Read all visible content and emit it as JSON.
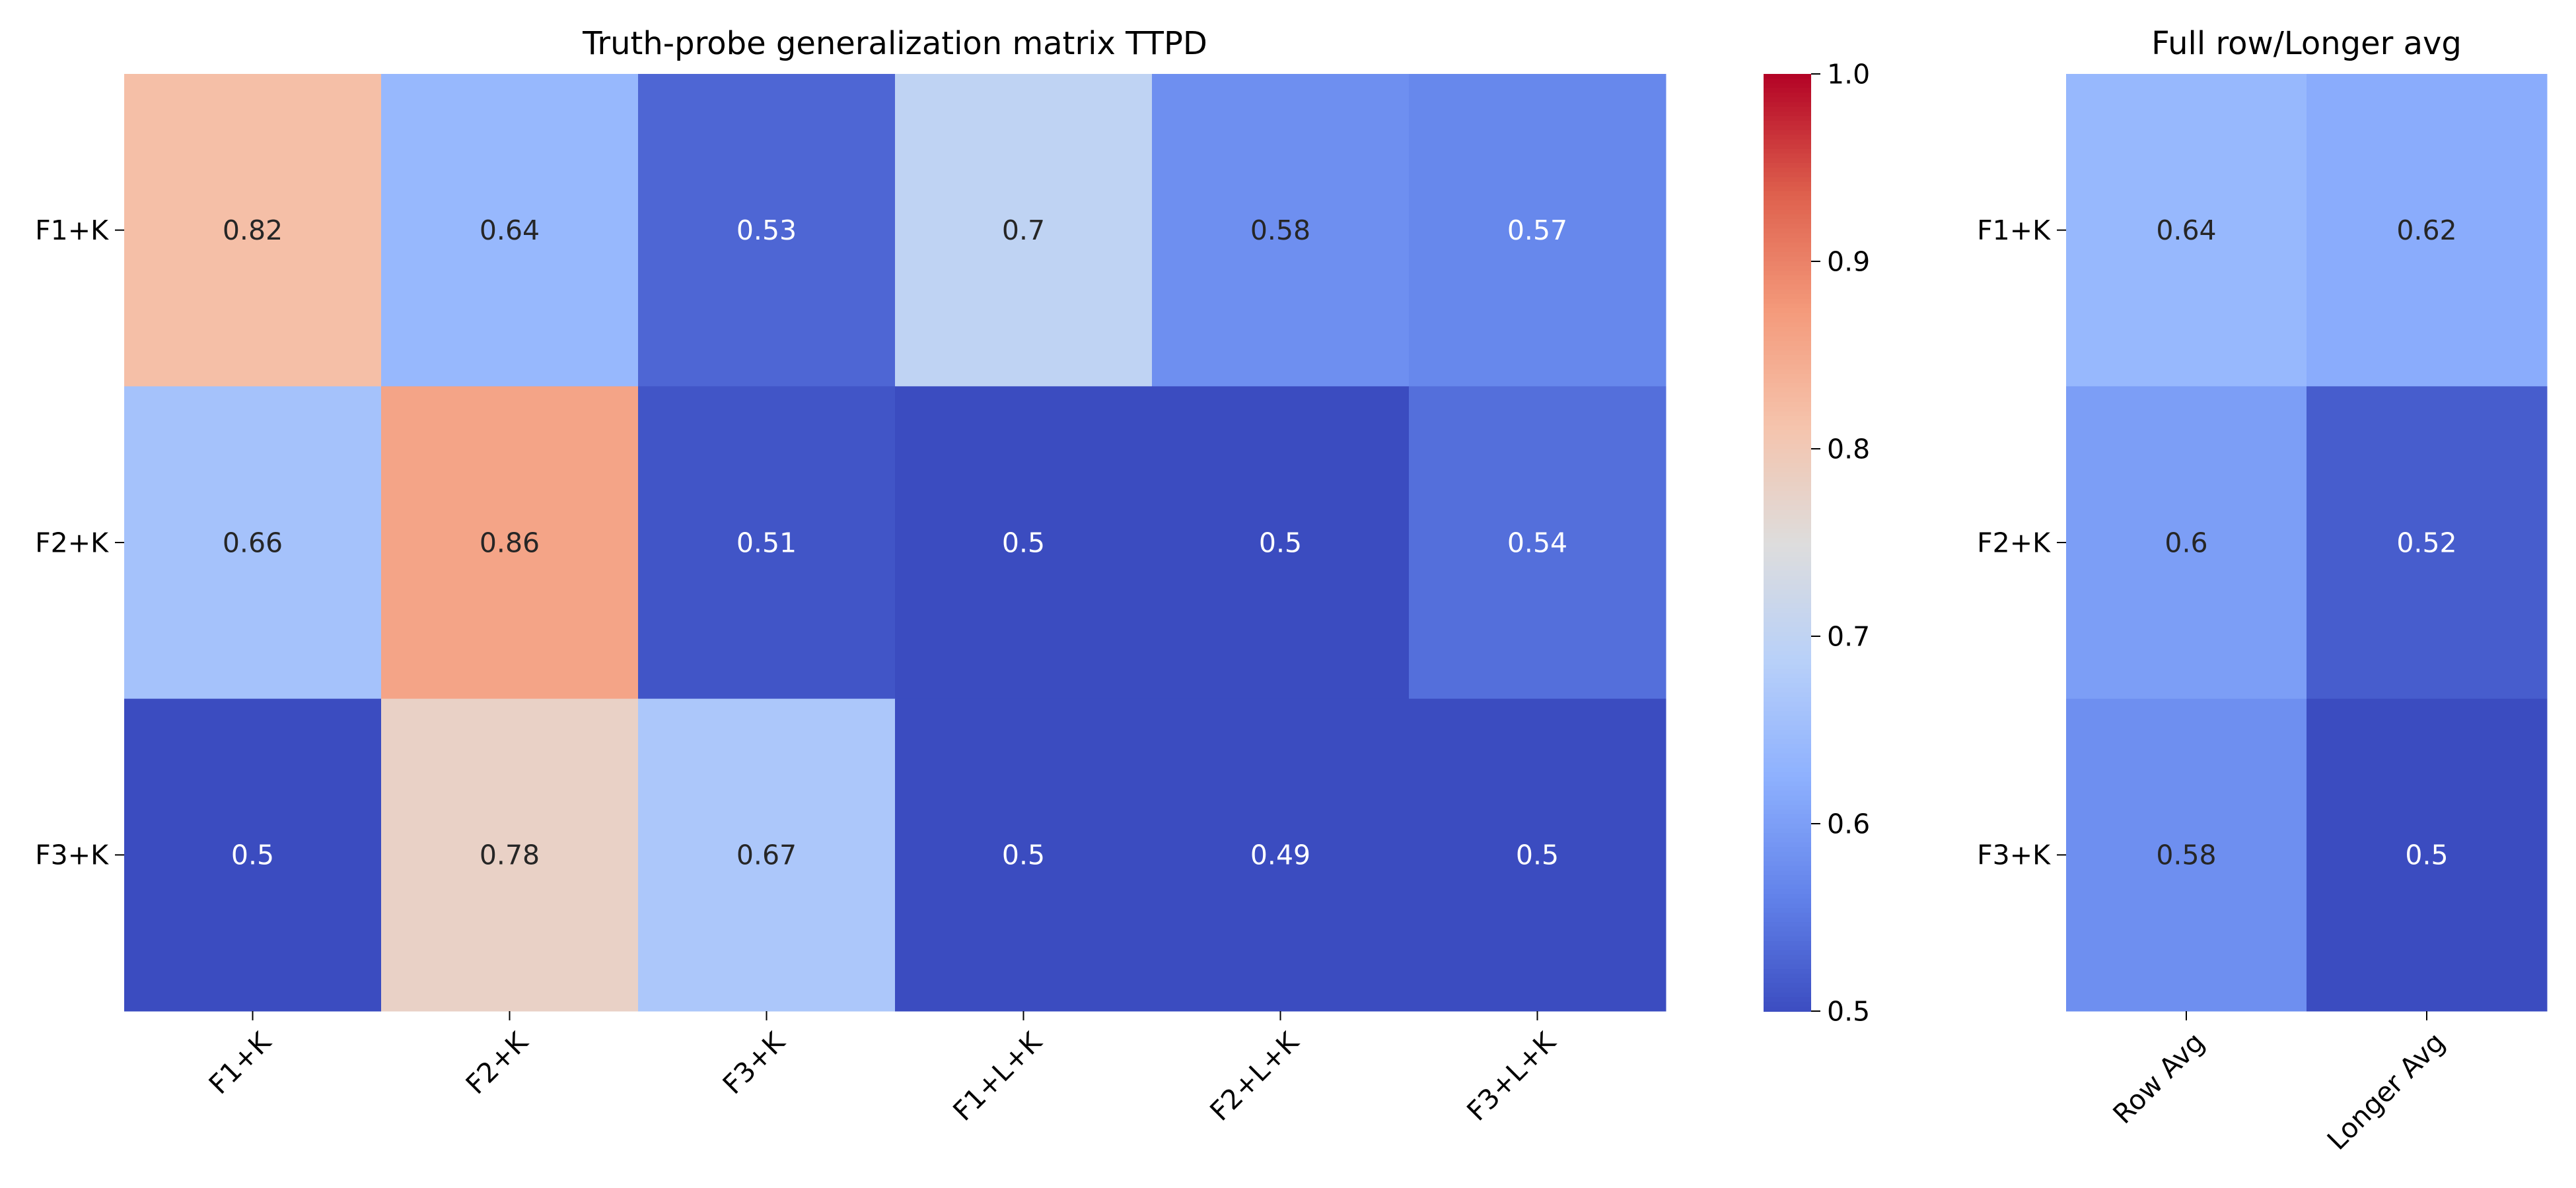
{
  "chart_data": [
    {
      "type": "heatmap",
      "title": "Truth-probe generalization matrix TTPD",
      "xlabel": "",
      "ylabel": "",
      "row_labels": [
        "F1+K",
        "F2+K",
        "F3+K"
      ],
      "col_labels": [
        "F1+K",
        "F2+K",
        "F3+K",
        "F1+L+K",
        "F2+L+K",
        "F3+L+K"
      ],
      "values": [
        [
          0.82,
          0.64,
          0.53,
          0.7,
          0.58,
          0.57
        ],
        [
          0.66,
          0.86,
          0.51,
          0.5,
          0.5,
          0.54
        ],
        [
          0.5,
          0.78,
          0.67,
          0.5,
          0.49,
          0.5
        ]
      ],
      "colorbar": {
        "min": 0.5,
        "max": 1.0,
        "ticks": [
          "0.5",
          "0.6",
          "0.7",
          "0.8",
          "0.9",
          "1.0"
        ]
      },
      "colormap": "coolwarm",
      "annotate": true
    },
    {
      "type": "heatmap",
      "title": "Full row/Longer avg",
      "xlabel": "",
      "ylabel": "",
      "row_labels": [
        "F1+K",
        "F2+K",
        "F3+K"
      ],
      "col_labels": [
        "Row Avg",
        "Longer Avg"
      ],
      "values": [
        [
          0.64,
          0.62
        ],
        [
          0.6,
          0.52
        ],
        [
          0.58,
          0.5
        ]
      ],
      "colormap": "coolwarm",
      "color_range": [
        0.5,
        1.0
      ],
      "annotate": true
    }
  ]
}
